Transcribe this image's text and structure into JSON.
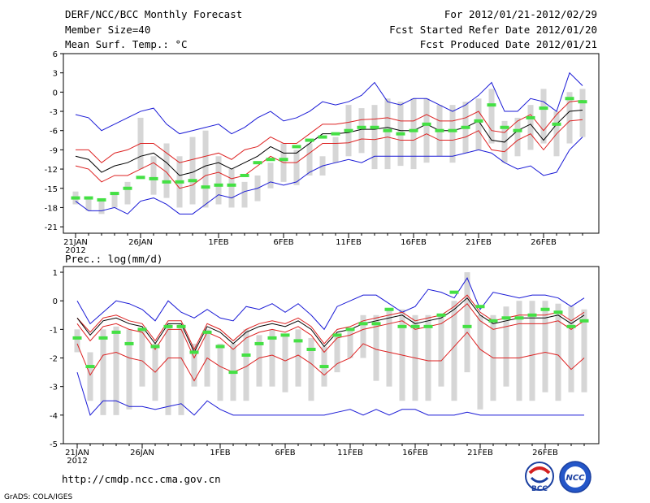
{
  "header": {
    "title": "DERF/NCC/BCC Monthly Forecast",
    "member_size": "Member Size=40",
    "variable": "Mean Surf. Temp.: °C",
    "period": "For 2012/01/21-2012/02/29",
    "fcst_started": "Fcst Started Refer Date 2012/01/20",
    "fcst_produced": "Fcst Produced Date 2012/01/21"
  },
  "footer": {
    "url": "http://cmdp.ncc.cma.gov.cn",
    "credit": "GrADS: COLA/IGES",
    "logo_bcc_text": "BCC",
    "logo_ncc_text": "NCC"
  },
  "colors": {
    "box": "#d6d6d6",
    "mean": "#000000",
    "spread": "#dd2222",
    "extreme": "#1a1ad6",
    "obs_marker": "#44e044",
    "axis": "#000000"
  },
  "chart_data": [
    {
      "type": "line",
      "title": "Mean Surf. Temp.: °C",
      "x_tick_labels": [
        "21JAN",
        "26JAN",
        "1FEB",
        "6FEB",
        "11FEB",
        "16FEB",
        "21FEB",
        "26FEB"
      ],
      "x_year_label": "2012",
      "y_tick_labels": [
        "6",
        "3",
        "0",
        "-3",
        "-6",
        "-9",
        "-12",
        "-15",
        "-18",
        "-21"
      ],
      "ylim": [
        -22,
        6
      ],
      "x": [
        1,
        2,
        3,
        4,
        5,
        6,
        7,
        8,
        9,
        10,
        11,
        12,
        13,
        14,
        15,
        16,
        17,
        18,
        19,
        20,
        21,
        22,
        23,
        24,
        25,
        26,
        27,
        28,
        29,
        30,
        31,
        32,
        33,
        34,
        35,
        36,
        37,
        38,
        39,
        40
      ],
      "series": [
        {
          "name": "box_top",
          "values": [
            -15.5,
            -16.5,
            -17,
            -16,
            -14,
            -4,
            -10,
            -8,
            -10,
            -7,
            -6,
            -10,
            -12,
            -14,
            -13,
            -11,
            -8,
            -9,
            -8,
            -10,
            -7,
            -2,
            -2.5,
            -2,
            -1,
            -1.5,
            -1,
            -1,
            -2,
            -2,
            -1.5,
            -1,
            0.5,
            -4.5,
            -4,
            -2,
            0.5,
            -3,
            0,
            0.5
          ]
        },
        {
          "name": "box_bottom",
          "values": [
            -17.5,
            -18.5,
            -19,
            -18,
            -17.5,
            -12,
            -16,
            -16.5,
            -18,
            -17.5,
            -18,
            -17.5,
            -18,
            -18,
            -17,
            -15,
            -14,
            -14.5,
            -13,
            -13,
            -11,
            -10,
            -9.5,
            -12,
            -12,
            -11.5,
            -12,
            -11,
            -10,
            -11,
            -9.5,
            -9,
            -8,
            -11,
            -10,
            -9,
            -8,
            -10,
            -8,
            -7
          ]
        },
        {
          "name": "mean",
          "values": [
            -10,
            -10.5,
            -12.5,
            -11.5,
            -11,
            -10,
            -9.5,
            -11,
            -13,
            -12.5,
            -11.5,
            -11,
            -12,
            -11,
            -10,
            -8.5,
            -9.5,
            -9.5,
            -8,
            -6.5,
            -6.5,
            -6.3,
            -5.8,
            -5.8,
            -5.5,
            -6,
            -6,
            -5,
            -6,
            -6,
            -5.5,
            -4.5,
            -7.5,
            -7.8,
            -6,
            -5,
            -7.5,
            -5,
            -3,
            -2.8
          ]
        },
        {
          "name": "spread_upper",
          "values": [
            -9,
            -9,
            -11,
            -9.5,
            -9,
            -8,
            -8,
            -9.5,
            -11,
            -10.5,
            -10,
            -9.5,
            -10.5,
            -9,
            -8.5,
            -7,
            -8,
            -8,
            -6.5,
            -5,
            -5,
            -4.7,
            -4.3,
            -4.2,
            -4,
            -4.5,
            -4.5,
            -3.5,
            -4.5,
            -4.5,
            -4,
            -3,
            -6,
            -6.3,
            -4.5,
            -3.5,
            -6,
            -3.5,
            -1.5,
            -1.3
          ]
        },
        {
          "name": "spread_lower",
          "values": [
            -11.5,
            -12,
            -14,
            -13,
            -13,
            -12,
            -11,
            -12.5,
            -15,
            -14.5,
            -13,
            -12.5,
            -13.5,
            -13,
            -11.5,
            -10,
            -11,
            -11,
            -9.5,
            -8,
            -8,
            -7.9,
            -7.3,
            -7.4,
            -7,
            -7.5,
            -7.5,
            -6.5,
            -7.5,
            -7.5,
            -7,
            -6,
            -9,
            -9.3,
            -7.5,
            -6.5,
            -9,
            -6.5,
            -4.5,
            -4.3
          ]
        },
        {
          "name": "max",
          "values": [
            -3.5,
            -4,
            -6,
            -5,
            -4,
            -3,
            -2.5,
            -5,
            -6.5,
            -6,
            -5.5,
            -5,
            -6.5,
            -5.5,
            -4,
            -3,
            -4.5,
            -4,
            -3,
            -1.5,
            -2,
            -1.5,
            -0.5,
            1.5,
            -1.5,
            -2,
            -1,
            -1,
            -2,
            -3,
            -2,
            -0.5,
            1.5,
            -3,
            -3,
            -1,
            -1.5,
            -3,
            3,
            1
          ]
        },
        {
          "name": "min",
          "values": [
            -17,
            -18.5,
            -18.5,
            -18,
            -19,
            -17,
            -16.5,
            -17.5,
            -19,
            -19,
            -17.5,
            -16,
            -16.5,
            -15.5,
            -15,
            -14,
            -14.5,
            -14,
            -12.5,
            -11.5,
            -11,
            -10.5,
            -11,
            -10,
            -10,
            -10,
            -10,
            -10,
            -10,
            -10,
            -9.5,
            -9,
            -9.5,
            -11,
            -12,
            -11.5,
            -13,
            -12.5,
            -9,
            -7
          ]
        },
        {
          "name": "obs",
          "values": [
            -16.5,
            -16.5,
            -16.8,
            -15.8,
            -15,
            -13.3,
            -13.5,
            -14,
            -14,
            -13.8,
            -14.8,
            -14.5,
            -14.5,
            -13,
            -11,
            -10.5,
            -10.5,
            -8.5,
            -7.5,
            -7,
            -6.5,
            -6,
            -5.5,
            -5.5,
            -6,
            -6.5,
            -6,
            -5,
            -6,
            -6,
            -5.5,
            -4.5,
            -2,
            -5.5,
            -6,
            -4,
            -2.5,
            -5,
            -1,
            -1.5
          ]
        }
      ]
    },
    {
      "type": "line",
      "title": "Prec.: log(mm/d)",
      "x_tick_labels": [
        "21JAN",
        "26JAN",
        "1FEB",
        "6FEB",
        "11FEB",
        "16FEB",
        "21FEB",
        "26FEB"
      ],
      "x_year_label": "2012",
      "y_tick_labels": [
        "1",
        "0",
        "-1",
        "-2",
        "-3",
        "-4",
        "-5"
      ],
      "ylim": [
        -5,
        1.2
      ],
      "x": [
        1,
        2,
        3,
        4,
        5,
        6,
        7,
        8,
        9,
        10,
        11,
        12,
        13,
        14,
        15,
        16,
        17,
        18,
        19,
        20,
        21,
        22,
        23,
        24,
        25,
        26,
        27,
        28,
        29,
        30,
        31,
        32,
        33,
        34,
        35,
        36,
        37,
        38,
        39,
        40
      ],
      "series": [
        {
          "name": "box_top",
          "values": [
            -1,
            -1.8,
            -1,
            -0.9,
            -1,
            -1,
            -1.5,
            -0.8,
            -0.8,
            -1.5,
            -1,
            -1.5,
            -1.5,
            -1,
            -1.2,
            -1,
            -1.2,
            -1,
            -1.3,
            -1.6,
            -1.2,
            -1,
            -0.5,
            -0.5,
            -0.3,
            -0.3,
            -0.5,
            -0.5,
            -0.5,
            0,
            1,
            -0.5,
            -0.5,
            -0.2,
            0,
            0,
            0,
            -0.1,
            -0.2,
            -0.3
          ]
        },
        {
          "name": "box_bottom",
          "values": [
            -1.8,
            -3.5,
            -4,
            -4,
            -3.8,
            -3,
            -3.5,
            -4,
            -4,
            -3,
            -3,
            -3.5,
            -3.5,
            -3.5,
            -3,
            -3,
            -3.2,
            -3,
            -3.5,
            -3,
            -2.5,
            -2,
            -2,
            -2.8,
            -3,
            -3.5,
            -3.5,
            -3.5,
            -3,
            -3.5,
            -2.5,
            -3.8,
            -3.5,
            -3,
            -3.5,
            -3.5,
            -3.2,
            -3.5,
            -3.2,
            -3.2
          ]
        },
        {
          "name": "mean",
          "values": [
            -0.6,
            -1.2,
            -0.7,
            -0.6,
            -0.8,
            -0.9,
            -1.5,
            -0.8,
            -0.8,
            -1.8,
            -0.9,
            -1.1,
            -1.5,
            -1.1,
            -0.9,
            -0.8,
            -0.9,
            -0.7,
            -1,
            -1.6,
            -1.1,
            -1,
            -0.8,
            -0.7,
            -0.6,
            -0.5,
            -0.8,
            -0.7,
            -0.6,
            -0.3,
            0.1,
            -0.5,
            -0.8,
            -0.7,
            -0.6,
            -0.6,
            -0.6,
            -0.5,
            -0.8,
            -0.5
          ]
        },
        {
          "name": "spread_upper",
          "values": [
            -0.6,
            -1.1,
            -0.6,
            -0.5,
            -0.7,
            -0.8,
            -1.4,
            -0.7,
            -0.7,
            -1.7,
            -0.8,
            -1,
            -1.4,
            -1,
            -0.8,
            -0.7,
            -0.8,
            -0.6,
            -0.9,
            -1.5,
            -1,
            -0.9,
            -0.7,
            -0.6,
            -0.5,
            -0.4,
            -0.7,
            -0.6,
            -0.5,
            -0.2,
            0.2,
            -0.4,
            -0.7,
            -0.6,
            -0.5,
            -0.5,
            -0.5,
            -0.4,
            -0.7,
            -0.4
          ]
        },
        {
          "name": "spread_lower",
          "values": [
            -1.5,
            -2.6,
            -1.9,
            -1.8,
            -2,
            -2.1,
            -2.5,
            -2,
            -2,
            -2.8,
            -2,
            -2.3,
            -2.5,
            -2.3,
            -2,
            -1.9,
            -2.1,
            -1.9,
            -2.2,
            -2.6,
            -2.2,
            -2,
            -1.5,
            -1.7,
            -1.8,
            -1.9,
            -2,
            -2.1,
            -2.1,
            -1.6,
            -1.1,
            -1.7,
            -2,
            -2,
            -2,
            -1.9,
            -1.8,
            -1.9,
            -2.4,
            -2
          ]
        },
        {
          "name": "spread_lower2",
          "values": [
            -0.8,
            -1.4,
            -0.9,
            -0.8,
            -1,
            -1.1,
            -1.7,
            -1,
            -1,
            -2,
            -1.1,
            -1.3,
            -1.7,
            -1.3,
            -1.1,
            -1,
            -1.1,
            -0.9,
            -1.2,
            -1.8,
            -1.3,
            -1.2,
            -1,
            -0.9,
            -0.8,
            -0.7,
            -1,
            -0.9,
            -0.8,
            -0.5,
            -0.1,
            -0.7,
            -1,
            -0.9,
            -0.8,
            -0.8,
            -0.8,
            -0.7,
            -1,
            -0.7
          ]
        },
        {
          "name": "max",
          "values": [
            0,
            -0.8,
            -0.4,
            0,
            -0.1,
            -0.3,
            -0.7,
            0,
            -0.4,
            -0.6,
            -0.3,
            -0.6,
            -0.7,
            -0.2,
            -0.3,
            -0.1,
            -0.4,
            -0.1,
            -0.5,
            -1,
            -0.2,
            0,
            0.2,
            0.2,
            -0.1,
            -0.4,
            -0.2,
            0.4,
            0.3,
            0.1,
            0.8,
            -0.3,
            0.3,
            0.2,
            0.1,
            0.2,
            0.2,
            0.1,
            -0.2,
            0.1
          ]
        },
        {
          "name": "min",
          "values": [
            -2.5,
            -4,
            -3.5,
            -3.5,
            -3.7,
            -3.7,
            -3.8,
            -3.7,
            -3.6,
            -4,
            -3.5,
            -3.8,
            -4,
            -4,
            -4,
            -4,
            -4,
            -4,
            -4,
            -4,
            -3.9,
            -3.8,
            -4,
            -3.8,
            -4,
            -3.8,
            -3.8,
            -4,
            -4,
            -4,
            -3.9,
            -4,
            -4,
            -4,
            -4,
            -4,
            -4,
            -4,
            -4,
            -4
          ]
        },
        {
          "name": "obs",
          "values": [
            -1.3,
            -2.3,
            -1.3,
            -1.1,
            -1.5,
            -1,
            -1.6,
            -0.9,
            -0.9,
            -1.8,
            -1.1,
            -1.6,
            -2.5,
            -1.9,
            -1.5,
            -1.3,
            -1.2,
            -1.4,
            -1.7,
            -2.3,
            -1.2,
            -1,
            -0.8,
            -0.8,
            -0.3,
            -0.9,
            -0.9,
            -0.9,
            -0.5,
            0.3,
            -0.9,
            -0.2,
            -0.7,
            -0.6,
            -0.6,
            -0.5,
            -0.3,
            -0.4,
            -0.9,
            -0.7
          ]
        }
      ]
    }
  ]
}
